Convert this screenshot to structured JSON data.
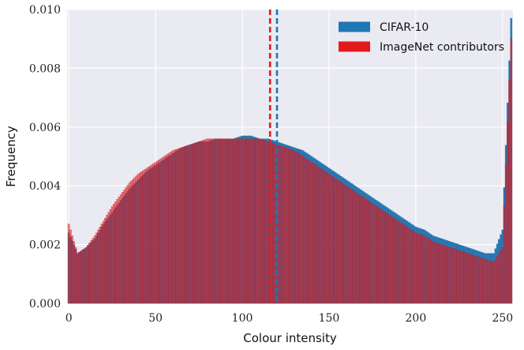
{
  "chart_data": {
    "type": "bar",
    "xlabel": "Colour intensity",
    "ylabel": "Frequency",
    "xlim": [
      -1,
      256
    ],
    "ylim": [
      0,
      0.01
    ],
    "x_ticks": [
      0,
      50,
      100,
      150,
      200,
      250
    ],
    "y_ticks": [
      0.0,
      0.002,
      0.004,
      0.006,
      0.008,
      0.01
    ],
    "y_tick_labels": [
      "0.000",
      "0.002",
      "0.004",
      "0.006",
      "0.008",
      "0.010"
    ],
    "grid": true,
    "legend_position": "top-right",
    "series": [
      {
        "name": "CIFAR-10",
        "color": "#1f77b4",
        "mean": 120,
        "x_step": 5,
        "x": [
          0,
          5,
          10,
          15,
          20,
          25,
          30,
          35,
          40,
          45,
          50,
          55,
          60,
          65,
          70,
          75,
          80,
          85,
          90,
          95,
          100,
          105,
          110,
          115,
          120,
          125,
          130,
          135,
          140,
          145,
          150,
          155,
          160,
          165,
          170,
          175,
          180,
          185,
          190,
          195,
          200,
          205,
          210,
          215,
          220,
          225,
          230,
          235,
          240,
          245,
          250,
          255
        ],
        "values": [
          0.0024,
          0.0017,
          0.0019,
          0.0022,
          0.0027,
          0.0031,
          0.0035,
          0.0039,
          0.0042,
          0.0045,
          0.0047,
          0.0049,
          0.0051,
          0.0053,
          0.0054,
          0.0055,
          0.0055,
          0.0056,
          0.0056,
          0.0056,
          0.0057,
          0.0057,
          0.0056,
          0.0056,
          0.0055,
          0.0054,
          0.0053,
          0.0052,
          0.005,
          0.0048,
          0.0046,
          0.0044,
          0.0042,
          0.004,
          0.0038,
          0.0036,
          0.0034,
          0.0032,
          0.003,
          0.0028,
          0.0026,
          0.0025,
          0.0023,
          0.0022,
          0.0021,
          0.002,
          0.0019,
          0.0018,
          0.0017,
          0.0017,
          0.0025,
          0.0097
        ]
      },
      {
        "name": "ImageNet contributors",
        "color": "#e31a1c",
        "mean": 116,
        "x_step": 5,
        "x": [
          0,
          5,
          10,
          15,
          20,
          25,
          30,
          35,
          40,
          45,
          50,
          55,
          60,
          65,
          70,
          75,
          80,
          85,
          90,
          95,
          100,
          105,
          110,
          115,
          120,
          125,
          130,
          135,
          140,
          145,
          150,
          155,
          160,
          165,
          170,
          175,
          180,
          185,
          190,
          195,
          200,
          205,
          210,
          215,
          220,
          225,
          230,
          235,
          240,
          245,
          250,
          255
        ],
        "values": [
          0.0027,
          0.0017,
          0.0019,
          0.0023,
          0.0028,
          0.0033,
          0.0037,
          0.0041,
          0.0044,
          0.0046,
          0.0048,
          0.005,
          0.0052,
          0.0053,
          0.0054,
          0.0055,
          0.0056,
          0.0056,
          0.0056,
          0.0056,
          0.0056,
          0.0056,
          0.0056,
          0.0055,
          0.0054,
          0.0053,
          0.0052,
          0.005,
          0.0048,
          0.0046,
          0.0044,
          0.0042,
          0.004,
          0.0038,
          0.0036,
          0.0034,
          0.0032,
          0.003,
          0.0028,
          0.0026,
          0.0024,
          0.0023,
          0.0021,
          0.002,
          0.0019,
          0.0018,
          0.0017,
          0.0016,
          0.0015,
          0.0014,
          0.0019,
          0.009
        ]
      }
    ]
  }
}
